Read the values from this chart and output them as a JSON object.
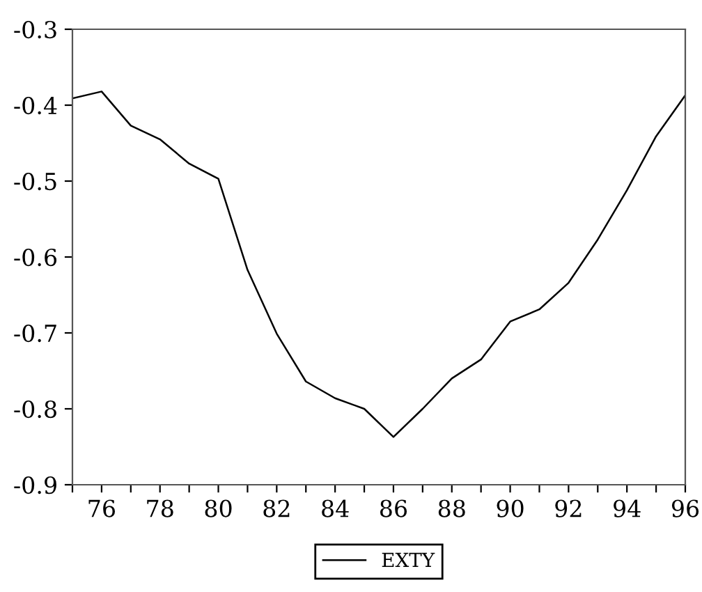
{
  "chart_data": {
    "type": "line",
    "x": [
      75,
      76,
      77,
      78,
      79,
      80,
      81,
      82,
      83,
      84,
      85,
      86,
      87,
      88,
      89,
      90,
      91,
      92,
      93,
      94,
      95,
      96
    ],
    "series": [
      {
        "name": "EXTY",
        "color": "#000000",
        "values": [
          -0.391,
          -0.382,
          -0.427,
          -0.445,
          -0.477,
          -0.497,
          -0.617,
          -0.701,
          -0.764,
          -0.786,
          -0.8,
          -0.837,
          -0.8,
          -0.76,
          -0.735,
          -0.685,
          -0.669,
          -0.634,
          -0.577,
          -0.512,
          -0.441,
          -0.387
        ]
      }
    ],
    "xlim": [
      75,
      96
    ],
    "xticks": [
      {
        "value": 75,
        "label": null
      },
      76,
      {
        "value": 77,
        "label": null
      },
      78,
      {
        "value": 79,
        "label": null
      },
      80,
      {
        "value": 81,
        "label": null
      },
      82,
      {
        "value": 83,
        "label": null
      },
      84,
      {
        "value": 85,
        "label": null
      },
      86,
      {
        "value": 87,
        "label": null
      },
      88,
      {
        "value": 89,
        "label": null
      },
      90,
      {
        "value": 91,
        "label": null
      },
      92,
      {
        "value": 93,
        "label": null
      },
      94,
      {
        "value": 95,
        "label": null
      },
      96
    ],
    "ylim": [
      -0.9,
      -0.3
    ],
    "yticks": [
      -0.9,
      -0.8,
      -0.7,
      -0.6,
      -0.5,
      -0.4,
      -0.3
    ],
    "legend": "bottom",
    "grid": false,
    "marker": "none",
    "line_style": "solid"
  }
}
